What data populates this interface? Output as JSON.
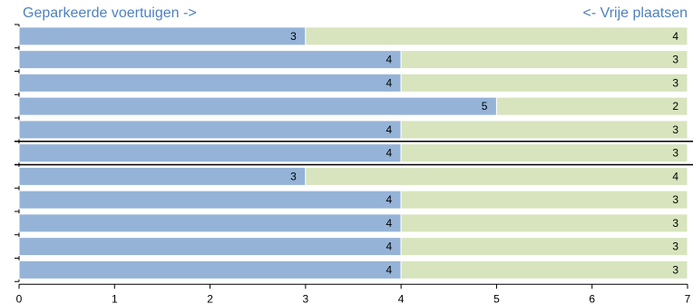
{
  "header": {
    "left_label": "Geparkeerde voertuigen ->",
    "right_label": "<- Vrije plaatsen"
  },
  "chart_data": {
    "type": "bar",
    "orientation": "horizontal",
    "stacked": true,
    "categories": [
      "",
      "",
      "",
      "",
      "",
      "",
      "",
      "",
      "",
      "",
      ""
    ],
    "series": [
      {
        "values": [
          3,
          4,
          4,
          5,
          4,
          4,
          3,
          4,
          4,
          4,
          4
        ],
        "color": "#95b3d7"
      },
      {
        "values": [
          4,
          3,
          3,
          2,
          3,
          3,
          4,
          3,
          3,
          3,
          3
        ],
        "color": "#d7e4bd"
      }
    ],
    "xlim": [
      0,
      7
    ],
    "xticks": [
      "0",
      "1",
      "2",
      "3",
      "4",
      "5",
      "6",
      "7"
    ],
    "separators_after_rows": [
      4,
      5
    ],
    "grid": false
  }
}
